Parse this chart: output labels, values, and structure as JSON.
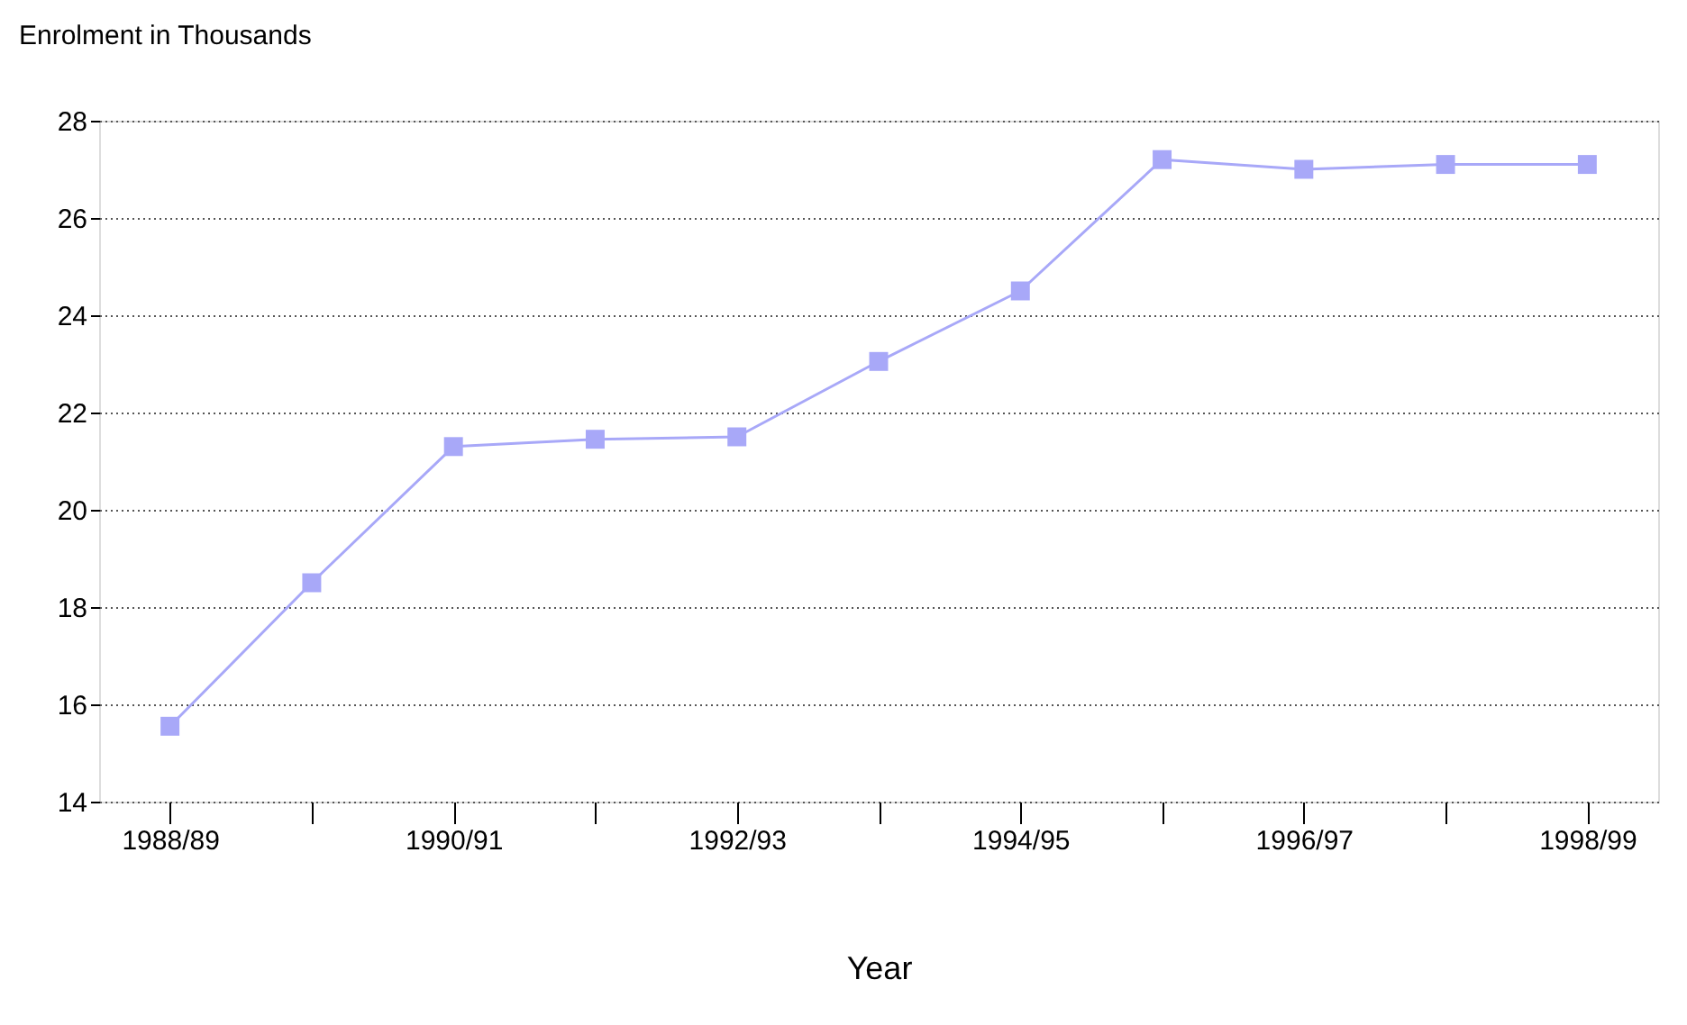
{
  "chart_data": {
    "type": "line",
    "xlabel": "Year",
    "ylabel": "Enrolment in Thousands",
    "categories": [
      "1988/89",
      null,
      "1990/91",
      null,
      "1992/93",
      null,
      "1994/95",
      null,
      "1996/97",
      null,
      "1998/99"
    ],
    "series": [
      {
        "color": "#a8a8f8",
        "values": [
          15.55,
          18.5,
          21.3,
          21.45,
          21.5,
          23.05,
          24.5,
          27.2,
          27.0,
          27.1,
          27.1
        ]
      }
    ],
    "ylim": [
      14,
      28
    ],
    "yticks": [
      14,
      16,
      18,
      20,
      22,
      24,
      26,
      28
    ],
    "grid": "y",
    "marker": "square",
    "line_style": "solid"
  }
}
